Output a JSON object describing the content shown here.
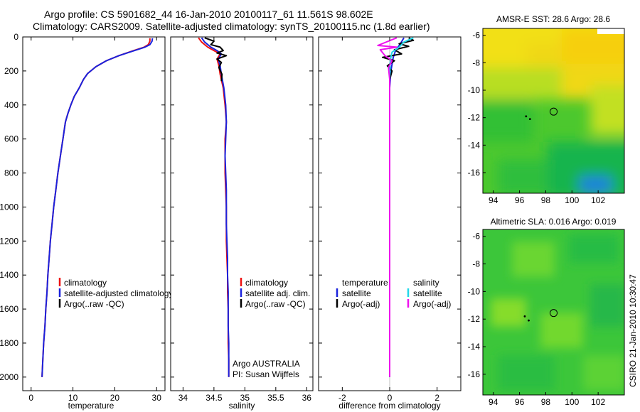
{
  "header": {
    "title_line1": "Argo profile: CS 5901682_44 16-Jan-2010 20100117_61 11.561S 98.602E",
    "title_line2": "Climatology: CARS2009. Satellite-adjusted climatology: synTS_20100115.nc (1.8d earlier)"
  },
  "footer": {
    "stamp": "CSIRO 21-Jan-2010 10:30:47"
  },
  "colors": {
    "clim": "#ee1111",
    "sat_adj": "#1a22dd",
    "argo": "#000000",
    "sal_sat": "#22d8e8",
    "sal_argo": "#ee11ee"
  },
  "chart_data": [
    {
      "id": "temperature",
      "type": "line",
      "xlabel": "temperature",
      "ylabel": "",
      "title": "",
      "xlim": [
        -2,
        32
      ],
      "ylim": [
        2080,
        0
      ],
      "xticks": [
        0,
        10,
        20,
        30
      ],
      "yticks": [
        0,
        200,
        400,
        600,
        800,
        1000,
        1200,
        1400,
        1600,
        1800,
        2000
      ],
      "legend": [
        "climatology",
        "satellite-adjusted climatology",
        "Argo(..raw -QC)"
      ],
      "series": [
        {
          "name": "climatology",
          "color": "#ee1111",
          "points": [
            [
              28.4,
              8
            ],
            [
              28.4,
              25
            ],
            [
              28.0,
              45
            ],
            [
              27.0,
              60
            ],
            [
              24.5,
              80
            ],
            [
              21.0,
              110
            ],
            [
              18.0,
              140
            ],
            [
              15.5,
              175
            ],
            [
              13.5,
              215
            ],
            [
              12.5,
              250
            ],
            [
              11.5,
              300
            ],
            [
              10.3,
              350
            ],
            [
              9.5,
              400
            ],
            [
              8.8,
              450
            ],
            [
              8.2,
              500
            ],
            [
              7.6,
              600
            ],
            [
              7.0,
              700
            ],
            [
              6.4,
              800
            ],
            [
              5.9,
              900
            ],
            [
              5.4,
              1000
            ],
            [
              5.0,
              1100
            ],
            [
              4.6,
              1200
            ],
            [
              4.3,
              1300
            ],
            [
              4.0,
              1400
            ],
            [
              3.8,
              1500
            ],
            [
              3.5,
              1600
            ],
            [
              3.3,
              1700
            ],
            [
              3.0,
              1800
            ],
            [
              2.8,
              1900
            ],
            [
              2.6,
              2000
            ]
          ]
        },
        {
          "name": "satellite-adjusted climatology",
          "color": "#1a22dd",
          "points": [
            [
              29.0,
              8
            ],
            [
              28.9,
              25
            ],
            [
              28.4,
              45
            ],
            [
              27.2,
              60
            ],
            [
              24.7,
              80
            ],
            [
              21.0,
              110
            ],
            [
              18.0,
              140
            ],
            [
              15.5,
              175
            ],
            [
              13.5,
              215
            ],
            [
              12.5,
              250
            ],
            [
              11.5,
              300
            ],
            [
              10.3,
              350
            ],
            [
              9.5,
              400
            ],
            [
              8.8,
              450
            ],
            [
              8.2,
              500
            ],
            [
              7.6,
              600
            ],
            [
              7.0,
              700
            ],
            [
              6.4,
              800
            ],
            [
              5.9,
              900
            ],
            [
              5.4,
              1000
            ],
            [
              5.0,
              1100
            ],
            [
              4.6,
              1200
            ],
            [
              4.3,
              1300
            ],
            [
              4.0,
              1400
            ],
            [
              3.8,
              1500
            ],
            [
              3.5,
              1600
            ],
            [
              3.3,
              1700
            ],
            [
              3.0,
              1800
            ],
            [
              2.8,
              1900
            ],
            [
              2.6,
              2000
            ]
          ]
        }
      ]
    },
    {
      "id": "salinity",
      "type": "line",
      "xlabel": "salinity",
      "ylabel": "",
      "title": "",
      "xlim": [
        33.8,
        36.1
      ],
      "ylim": [
        2080,
        0
      ],
      "xticks": [
        34,
        34.5,
        35,
        35.5,
        36
      ],
      "yticks": [],
      "legend": [
        "climatology",
        "satellite adj. clim.",
        "Argo(..raw -QC)"
      ],
      "annotation": [
        "Argo AUSTRALIA",
        "PI: Susan Wijffels"
      ],
      "series": [
        {
          "name": "climatology",
          "color": "#ee1111",
          "points": [
            [
              34.25,
              5
            ],
            [
              34.3,
              30
            ],
            [
              34.4,
              60
            ],
            [
              34.5,
              80
            ],
            [
              34.6,
              100
            ],
            [
              34.55,
              130
            ],
            [
              34.58,
              170
            ],
            [
              34.6,
              220
            ],
            [
              34.65,
              300
            ],
            [
              34.68,
              400
            ],
            [
              34.7,
              500
            ],
            [
              34.68,
              600
            ],
            [
              34.68,
              700
            ],
            [
              34.68,
              800
            ],
            [
              34.69,
              900
            ],
            [
              34.7,
              1000
            ],
            [
              34.7,
              1100
            ],
            [
              34.7,
              1200
            ],
            [
              34.71,
              1300
            ],
            [
              34.72,
              1400
            ],
            [
              34.72,
              1500
            ],
            [
              34.73,
              1600
            ],
            [
              34.73,
              1700
            ],
            [
              34.73,
              1800
            ],
            [
              34.74,
              1900
            ],
            [
              34.74,
              2000
            ]
          ]
        },
        {
          "name": "satellite adj. clim.",
          "color": "#1a22dd",
          "points": [
            [
              34.3,
              5
            ],
            [
              34.35,
              30
            ],
            [
              34.45,
              60
            ],
            [
              34.55,
              80
            ],
            [
              34.62,
              100
            ],
            [
              34.57,
              130
            ],
            [
              34.6,
              170
            ],
            [
              34.62,
              220
            ],
            [
              34.66,
              300
            ],
            [
              34.69,
              400
            ],
            [
              34.7,
              500
            ],
            [
              34.69,
              600
            ],
            [
              34.68,
              700
            ],
            [
              34.69,
              800
            ],
            [
              34.7,
              900
            ],
            [
              34.7,
              1000
            ],
            [
              34.7,
              1100
            ],
            [
              34.71,
              1200
            ],
            [
              34.72,
              1300
            ],
            [
              34.72,
              1400
            ],
            [
              34.73,
              1500
            ],
            [
              34.73,
              1600
            ],
            [
              34.73,
              1700
            ],
            [
              34.74,
              1800
            ],
            [
              34.74,
              1900
            ],
            [
              34.74,
              2000
            ]
          ]
        },
        {
          "name": "Argo(..raw -QC)",
          "color": "#000000",
          "points": [
            [
              34.35,
              5
            ],
            [
              34.5,
              25
            ],
            [
              34.45,
              45
            ],
            [
              34.6,
              60
            ],
            [
              34.65,
              80
            ],
            [
              34.55,
              95
            ],
            [
              34.7,
              110
            ],
            [
              34.55,
              130
            ],
            [
              34.62,
              150
            ],
            [
              34.58,
              180
            ],
            [
              34.63,
              220
            ],
            [
              34.62,
              260
            ]
          ]
        }
      ]
    },
    {
      "id": "difference",
      "type": "line",
      "xlabel": "difference from climatology",
      "ylabel": "",
      "title": "",
      "xlim": [
        -3,
        3
      ],
      "ylim": [
        2080,
        0
      ],
      "xticks": [
        -2,
        0,
        2
      ],
      "yticks": [],
      "legend_temperature": [
        "temperature",
        "satellite",
        "Argo(-adj)"
      ],
      "legend_salinity": [
        "salinity",
        "satellite",
        "Argo(-adj)"
      ],
      "series": [
        {
          "name": "temperature satellite",
          "color": "#1a22dd",
          "points": [
            [
              0.6,
              5
            ],
            [
              0.45,
              40
            ],
            [
              0.25,
              80
            ],
            [
              0.15,
              120
            ],
            [
              0.05,
              200
            ],
            [
              0.0,
              300
            ],
            [
              0.0,
              2000
            ]
          ]
        },
        {
          "name": "temperature Argo(-adj)",
          "color": "#000000",
          "points": [
            [
              0.8,
              5
            ],
            [
              1.0,
              20
            ],
            [
              0.4,
              40
            ],
            [
              0.8,
              55
            ],
            [
              0.2,
              75
            ],
            [
              0.5,
              100
            ],
            [
              -0.3,
              120
            ],
            [
              0.2,
              140
            ],
            [
              -0.1,
              170
            ],
            [
              0.1,
              200
            ],
            [
              0.0,
              250
            ],
            [
              0.0,
              2000
            ]
          ]
        },
        {
          "name": "salinity satellite",
          "color": "#22d8e8",
          "points": [
            [
              1.0,
              5
            ],
            [
              0.6,
              30
            ],
            [
              0.4,
              60
            ],
            [
              0.1,
              90
            ],
            [
              0.05,
              120
            ],
            [
              0.02,
              150
            ],
            [
              0.0,
              250
            ],
            [
              0.0,
              2000
            ]
          ]
        },
        {
          "name": "salinity Argo(-adj)",
          "color": "#ee11ee",
          "points": [
            [
              0.3,
              5
            ],
            [
              -0.5,
              50
            ],
            [
              0.3,
              60
            ],
            [
              -0.4,
              75
            ],
            [
              -0.2,
              110
            ],
            [
              0.1,
              140
            ],
            [
              -0.05,
              180
            ],
            [
              0.0,
              250
            ],
            [
              0.0,
              2000
            ]
          ]
        }
      ]
    },
    {
      "id": "amsr_sst",
      "type": "heatmap",
      "title": "AMSR-E SST: 28.6 Argo: 28.6",
      "xlim": [
        93.2,
        104.0
      ],
      "ylim": [
        -17.5,
        -5.5
      ],
      "xticks": [
        94,
        96,
        98,
        100,
        102
      ],
      "yticks": [
        -6,
        -8,
        -10,
        -12,
        -14,
        -16
      ],
      "argo_position": [
        98.602,
        -11.561
      ],
      "track": [
        [
          96.5,
          -11.9
        ],
        [
          96.8,
          -12.1
        ]
      ]
    },
    {
      "id": "altimetric_sla",
      "type": "heatmap",
      "title": "Altimetric SLA: 0.016 Argo: 0.019",
      "xlim": [
        93.2,
        104.0
      ],
      "ylim": [
        -17.5,
        -5.5
      ],
      "xticks": [
        94,
        96,
        98,
        100,
        102
      ],
      "yticks": [
        -6,
        -8,
        -10,
        -12,
        -14,
        -16
      ],
      "argo_position": [
        98.602,
        -11.561
      ],
      "track": [
        [
          96.4,
          -11.8
        ],
        [
          96.7,
          -12.1
        ]
      ]
    }
  ]
}
